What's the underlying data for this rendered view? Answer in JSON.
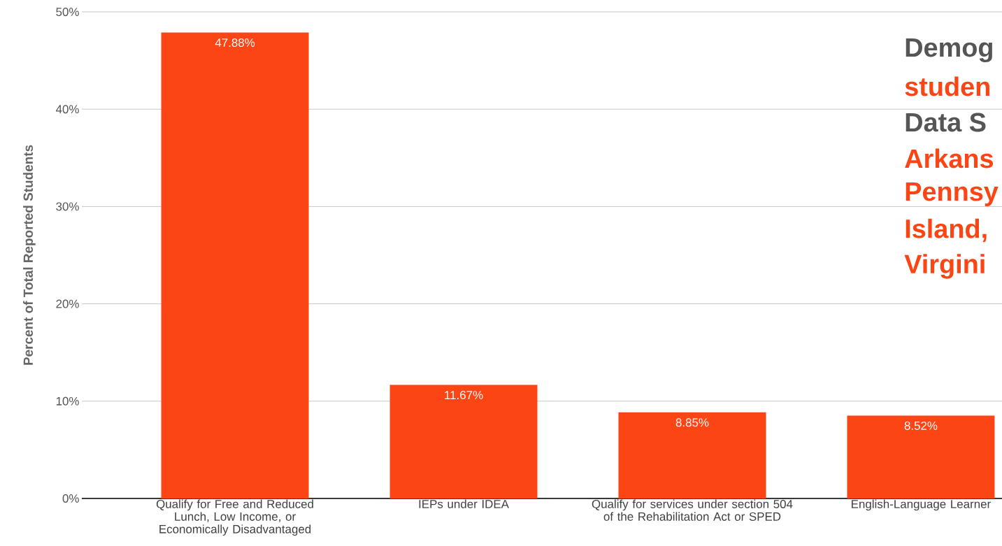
{
  "chart_data": {
    "type": "bar",
    "ylabel": "Percent of Total Reported Students",
    "categories": [
      "Qualify for Free and Reduced Lunch, Low Income, or Economically Disadvantaged",
      "IEPs under IDEA",
      "Qualify for services under section 504 of the Rehabilitation Act or SPED",
      "English-Language Learner"
    ],
    "values": [
      47.88,
      11.67,
      8.85,
      8.52
    ],
    "value_labels": [
      "47.88%",
      "11.67%",
      "8.85%",
      "8.52%"
    ],
    "color": "#fc4514",
    "ylim": [
      0,
      50
    ],
    "yticks": [
      {
        "value": 0,
        "label": "0%"
      },
      {
        "value": 10,
        "label": "10%"
      },
      {
        "value": 20,
        "label": "20%"
      },
      {
        "value": 30,
        "label": "30%"
      },
      {
        "value": 40,
        "label": "40%"
      },
      {
        "value": 50,
        "label": "50%"
      }
    ],
    "grid": "y",
    "annotations": [
      "Demog",
      "studen",
      "Data S",
      "Arkans",
      "Pennsy",
      "Island,",
      "Virgini"
    ]
  }
}
